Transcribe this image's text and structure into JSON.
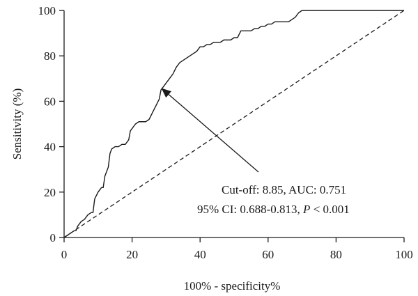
{
  "chart_data": {
    "type": "line",
    "xlabel": "100% - specificity%",
    "ylabel": "Sensitivity (%)",
    "xlim": [
      0,
      100
    ],
    "ylim": [
      0,
      100
    ],
    "x_ticks": [
      0,
      20,
      40,
      60,
      80,
      100
    ],
    "y_ticks": [
      0,
      20,
      40,
      60,
      80,
      100
    ],
    "grid": false,
    "series": [
      {
        "style": "solid",
        "x": [
          0,
          1,
          2,
          3,
          3.5,
          4,
          5,
          6,
          7,
          8,
          8.5,
          9,
          10,
          11,
          11.5,
          12,
          13,
          13.5,
          14,
          15,
          16,
          17,
          18,
          19,
          19.5,
          20,
          21,
          22,
          23,
          24,
          25,
          26,
          27,
          28,
          28.5,
          29,
          30,
          31,
          32,
          33,
          34,
          35,
          36,
          37,
          38,
          39,
          40,
          41,
          42,
          43,
          44,
          45,
          46,
          47,
          48,
          49,
          50,
          51,
          52,
          53,
          54,
          55,
          56,
          57,
          58,
          59,
          60,
          61,
          62,
          63,
          64,
          65,
          66,
          67,
          68,
          69,
          70,
          80,
          90,
          100
        ],
        "y": [
          0,
          1,
          2,
          3,
          3,
          5,
          7,
          8,
          10,
          11,
          11,
          17,
          20,
          22,
          22,
          27,
          31,
          37,
          39,
          40,
          40,
          41,
          41,
          43,
          47,
          48,
          50,
          51,
          51,
          51,
          52,
          55,
          58,
          61,
          65,
          66,
          68,
          70,
          72,
          75,
          77,
          78,
          79,
          80,
          81,
          82,
          84,
          84,
          85,
          85,
          86,
          86,
          86,
          87,
          87,
          87,
          88,
          88,
          91,
          91,
          91,
          91,
          92,
          92,
          93,
          93,
          94,
          94,
          95,
          95,
          95,
          95,
          95,
          96,
          97,
          99,
          100,
          100,
          100,
          100
        ]
      },
      {
        "style": "dashed",
        "x": [
          0,
          100
        ],
        "y": [
          0,
          100
        ]
      }
    ],
    "annotation": {
      "line1": "Cut-off: 8.85, AUC: 0.751",
      "line2_prefix": "95% CI: 0.688-0.813, ",
      "line2_p": "P",
      "line2_suffix": " < 0.001",
      "point": [
        28.5,
        66
      ]
    }
  }
}
